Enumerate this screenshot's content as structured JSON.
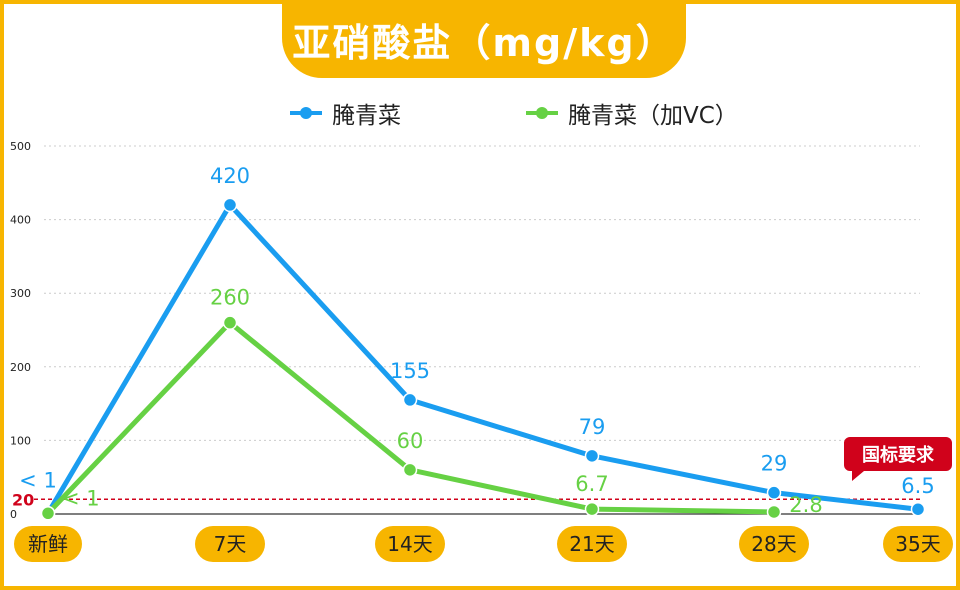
{
  "colors": {
    "accent": "#f7b500",
    "series1": "#1a9df0",
    "series2": "#66d144",
    "reference": "#d0021b",
    "grid": "#cccccc"
  },
  "chart_data": {
    "type": "line",
    "title": "亚硝酸盐（mg/kg）",
    "categories": [
      "新鲜",
      "7天",
      "14天",
      "21天",
      "28天",
      "35天"
    ],
    "series": [
      {
        "name": "腌青菜",
        "values": [
          1,
          420,
          155,
          79,
          29,
          6.5
        ],
        "labels": [
          "< 1",
          "420",
          "155",
          "79",
          "29",
          "6.5"
        ],
        "color": "#1a9df0"
      },
      {
        "name": "腌青菜（加VC）",
        "values": [
          1,
          260,
          60,
          6.7,
          2.8,
          null
        ],
        "labels": [
          "< 1",
          "260",
          "60",
          "6.7",
          "2.8",
          ""
        ],
        "color": "#66d144"
      }
    ],
    "yticks": [
      "500",
      "400",
      "300",
      "200",
      "100",
      "0"
    ],
    "ylim": [
      0,
      500
    ],
    "grid": true,
    "legend": "top",
    "reference_line": {
      "value": 20,
      "label": "20",
      "color": "#d0021b",
      "style": "dashed"
    },
    "annotation": "国标要求"
  }
}
